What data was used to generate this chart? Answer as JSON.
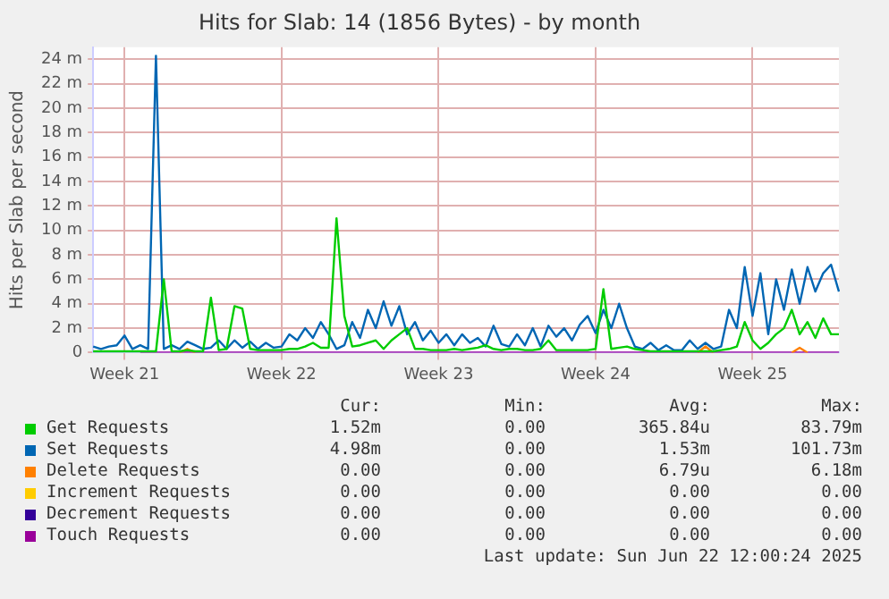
{
  "chart_data": {
    "type": "line",
    "title": "Hits for Slab: 14 (1856 Bytes) - by month",
    "ylabel": "Hits per Slab per second",
    "categories": [
      null,
      null,
      null,
      null,
      "Week 21",
      null,
      null,
      null,
      null,
      null,
      null,
      null,
      null,
      null,
      null,
      null,
      null,
      null,
      null,
      null,
      null,
      null,
      null,
      null,
      "Week 22",
      null,
      null,
      null,
      null,
      null,
      null,
      null,
      null,
      null,
      null,
      null,
      null,
      null,
      null,
      null,
      null,
      null,
      null,
      null,
      "Week 23",
      null,
      null,
      null,
      null,
      null,
      null,
      null,
      null,
      null,
      null,
      null,
      null,
      null,
      null,
      null,
      null,
      null,
      null,
      null,
      "Week 24",
      null,
      null,
      null,
      null,
      null,
      null,
      null,
      null,
      null,
      null,
      null,
      null,
      null,
      null,
      null,
      null,
      null,
      null,
      null,
      "Week 25",
      null,
      null,
      null,
      null,
      null,
      null,
      null,
      null,
      null,
      null,
      null
    ],
    "ylim": [
      0,
      25
    ],
    "yticks": [
      {
        "value": 0,
        "label": "0"
      },
      {
        "value": 2,
        "label": "2 m"
      },
      {
        "value": 4,
        "label": "4 m"
      },
      {
        "value": 6,
        "label": "6 m"
      },
      {
        "value": 8,
        "label": "8 m"
      },
      {
        "value": 10,
        "label": "10 m"
      },
      {
        "value": 12,
        "label": "12 m"
      },
      {
        "value": 14,
        "label": "14 m"
      },
      {
        "value": 16,
        "label": "16 m"
      },
      {
        "value": 18,
        "label": "18 m"
      },
      {
        "value": 20,
        "label": "20 m"
      },
      {
        "value": 22,
        "label": "22 m"
      },
      {
        "value": 24,
        "label": "24 m"
      }
    ],
    "grid": true,
    "legend": "bottom",
    "marker": "none",
    "line_style": "solid",
    "series": [
      {
        "name": "Get Requests",
        "color": "#00cc00",
        "values": [
          0.1,
          0.1,
          0.1,
          0.1,
          0.1,
          0.1,
          0.1,
          0.1,
          0.1,
          6.0,
          0.1,
          0.1,
          0.2,
          0.1,
          0.1,
          4.5,
          0.2,
          0.3,
          3.8,
          3.6,
          0.3,
          0.2,
          0.2,
          0.2,
          0.2,
          0.3,
          0.3,
          0.5,
          0.8,
          0.4,
          0.4,
          11.0,
          3.0,
          0.5,
          0.6,
          0.8,
          1.0,
          0.3,
          1.0,
          1.5,
          2.0,
          0.3,
          0.3,
          0.2,
          0.2,
          0.2,
          0.3,
          0.2,
          0.3,
          0.4,
          0.6,
          0.3,
          0.2,
          0.3,
          0.3,
          0.2,
          0.2,
          0.3,
          1.0,
          0.2,
          0.2,
          0.2,
          0.2,
          0.2,
          0.3,
          5.2,
          0.3,
          0.4,
          0.5,
          0.3,
          0.2,
          0.1,
          0.1,
          0.1,
          0.1,
          0.1,
          0.1,
          0.1,
          0.1,
          0.1,
          0.2,
          0.3,
          0.5,
          2.5,
          1.0,
          0.3,
          0.8,
          1.5,
          2.0,
          3.5,
          1.5,
          2.5,
          1.2,
          2.8,
          1.5,
          1.5
        ]
      },
      {
        "name": "Set Requests",
        "color": "#0066b3",
        "values": [
          0.5,
          0.3,
          0.5,
          0.6,
          1.4,
          0.3,
          0.6,
          0.3,
          24.3,
          0.3,
          0.6,
          0.3,
          0.9,
          0.6,
          0.3,
          0.4,
          1.0,
          0.3,
          1.0,
          0.4,
          0.9,
          0.3,
          0.8,
          0.4,
          0.5,
          1.5,
          1.0,
          2.0,
          1.2,
          2.5,
          1.5,
          0.3,
          0.6,
          2.5,
          1.2,
          3.5,
          2.0,
          4.2,
          2.2,
          3.8,
          1.5,
          2.5,
          1.0,
          1.8,
          0.8,
          1.5,
          0.6,
          1.5,
          0.8,
          1.2,
          0.5,
          2.2,
          0.7,
          0.5,
          1.5,
          0.6,
          2.0,
          0.5,
          2.2,
          1.3,
          2.0,
          1.0,
          2.3,
          3.0,
          1.6,
          3.5,
          2.0,
          4.0,
          2.0,
          0.5,
          0.3,
          0.8,
          0.2,
          0.6,
          0.2,
          0.2,
          1.0,
          0.3,
          0.8,
          0.3,
          0.5,
          3.5,
          2.0,
          7.0,
          3.0,
          6.5,
          1.5,
          6.0,
          3.5,
          6.8,
          4.0,
          7.0,
          5.0,
          6.5,
          7.2,
          5.0
        ]
      },
      {
        "name": "Delete Requests",
        "color": "#ff8000",
        "values": [
          null,
          null,
          null,
          null,
          null,
          null,
          null,
          null,
          null,
          null,
          null,
          0,
          0.3,
          0,
          null,
          null,
          null,
          null,
          null,
          null,
          null,
          null,
          null,
          null,
          null,
          null,
          null,
          null,
          null,
          null,
          null,
          null,
          null,
          null,
          null,
          null,
          null,
          null,
          null,
          null,
          null,
          null,
          null,
          null,
          null,
          null,
          null,
          null,
          null,
          null,
          null,
          null,
          null,
          null,
          null,
          null,
          null,
          null,
          null,
          null,
          null,
          null,
          null,
          null,
          null,
          null,
          null,
          null,
          null,
          null,
          null,
          null,
          null,
          null,
          null,
          null,
          null,
          0,
          0.5,
          0,
          null,
          null,
          null,
          null,
          null,
          null,
          null,
          null,
          null,
          0,
          0.4,
          0,
          null,
          null,
          null,
          null
        ]
      },
      {
        "name": "Increment Requests",
        "color": "#ffcc00",
        "values": [
          null,
          null,
          null,
          null,
          null,
          null,
          null,
          null,
          null,
          null,
          null,
          null,
          null,
          null,
          null,
          null,
          null,
          null,
          null,
          null,
          null,
          null,
          null,
          null,
          null,
          null,
          null,
          null,
          null,
          null,
          null,
          null,
          null,
          null,
          null,
          null,
          null,
          null,
          null,
          null,
          null,
          null,
          null,
          null,
          null,
          null,
          null,
          null,
          null,
          null,
          null,
          null,
          null,
          null,
          null,
          null,
          null,
          null,
          null,
          null,
          null,
          null,
          null,
          null,
          null,
          null,
          null,
          null,
          null,
          null,
          null,
          null,
          null,
          null,
          null,
          null,
          null,
          null,
          null,
          null,
          null,
          null,
          null,
          null,
          null,
          null,
          null,
          null,
          null,
          null,
          null,
          null,
          null,
          null,
          null,
          null
        ]
      },
      {
        "name": "Decrement Requests",
        "color": "#330099",
        "values": [
          null,
          null,
          null,
          null,
          null,
          null,
          null,
          null,
          null,
          null,
          null,
          null,
          null,
          null,
          null,
          null,
          null,
          null,
          null,
          null,
          null,
          null,
          null,
          null,
          null,
          null,
          null,
          null,
          null,
          null,
          null,
          null,
          null,
          null,
          null,
          null,
          null,
          null,
          null,
          null,
          null,
          null,
          null,
          null,
          null,
          null,
          null,
          null,
          null,
          null,
          null,
          null,
          null,
          null,
          null,
          null,
          null,
          null,
          null,
          null,
          null,
          null,
          null,
          null,
          null,
          null,
          null,
          null,
          null,
          null,
          null,
          null,
          null,
          null,
          null,
          null,
          null,
          null,
          null,
          null,
          null,
          null,
          null,
          null,
          null,
          null,
          null,
          null,
          null,
          null,
          null,
          null,
          null,
          null,
          null,
          null
        ]
      },
      {
        "name": "Touch Requests",
        "color": "#990099",
        "values": [
          null,
          null,
          null,
          null,
          null,
          null,
          0,
          0,
          0,
          0,
          0,
          0,
          0,
          0,
          0,
          0,
          0,
          0,
          0,
          0,
          0,
          0,
          0,
          0,
          0,
          0,
          0,
          0,
          0,
          0,
          0,
          0,
          0,
          0,
          0,
          0,
          0,
          0,
          0,
          0,
          0,
          0,
          0,
          0,
          0,
          0,
          0,
          0,
          0,
          0,
          0,
          0,
          0,
          0,
          0,
          0,
          0,
          0,
          0,
          0,
          0,
          0,
          0,
          0,
          0,
          0,
          0,
          0,
          0,
          0,
          0,
          0,
          0,
          0,
          0,
          0,
          0,
          0,
          0,
          0,
          0,
          0,
          0,
          0,
          0,
          0,
          0,
          0,
          0,
          0,
          0,
          0,
          0,
          0,
          0,
          0
        ]
      }
    ],
    "annotations": [
      "Cur:",
      "Min:",
      "Avg:",
      "Max:",
      "1.52m",
      "0.00",
      "365.84u",
      "83.79m",
      "4.98m",
      "0.00",
      "1.53m",
      "101.73m",
      "0.00",
      "0.00",
      "6.79u",
      "6.18m",
      "0.00",
      "0.00",
      "0.00",
      "0.00",
      "0.00",
      "0.00",
      "0.00",
      "0.00",
      "0.00",
      "0.00",
      "0.00",
      "0.00",
      "Last update: Sun Jun 22 12:00:24 2025"
    ]
  }
}
